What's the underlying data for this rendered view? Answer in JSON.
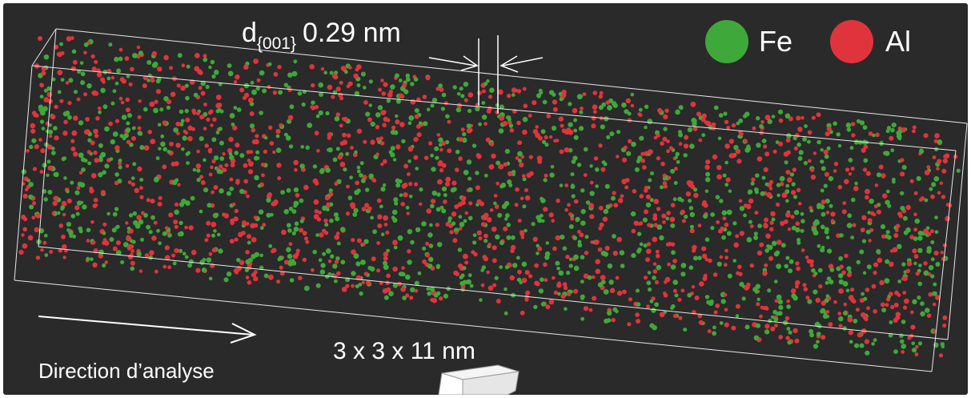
{
  "annotations": {
    "spacing_label_prefix": "d",
    "spacing_label_subscript": "{001}",
    "spacing_label_value": "0.29 nm",
    "volume_dimensions": "3 x 3 x 11 nm",
    "direction_label": "Direction d’analyse"
  },
  "legend": [
    {
      "label": "Fe",
      "color": "#3fa83a"
    },
    {
      "label": "Al",
      "color": "#e0343c"
    }
  ],
  "colors": {
    "background": "#2a2a2a",
    "box_edges": "#e8e8e8",
    "text": "#ffffff"
  }
}
